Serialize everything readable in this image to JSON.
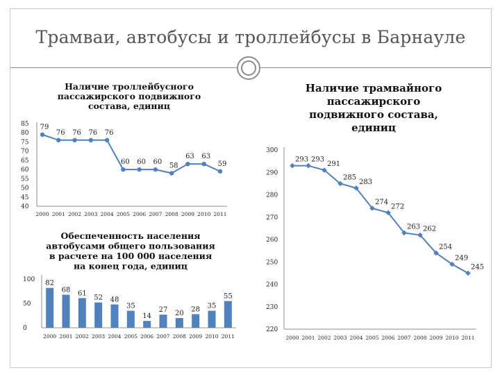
{
  "slide": {
    "title": "Трамваи, автобусы и троллейбусы в Барнауле"
  },
  "colors": {
    "series": "#4f81bd",
    "axis": "#8c8c8c",
    "text": "#222222",
    "title_text": "#555555"
  },
  "chart_data": [
    {
      "id": "trolleybus",
      "type": "line",
      "title_lines": [
        "Наличие троллейбусного",
        "пассажирского подвижного",
        "состава, единиц"
      ],
      "categories": [
        "2000",
        "2001",
        "2002",
        "2003",
        "2004",
        "2005",
        "2006",
        "2007",
        "2008",
        "2009",
        "2010",
        "2011"
      ],
      "values": [
        79,
        76,
        76,
        76,
        76,
        60,
        60,
        60,
        58,
        63,
        63,
        59
      ],
      "ylim": [
        40,
        85
      ],
      "yticks": [
        40,
        45,
        50,
        55,
        60,
        65,
        70,
        75,
        80,
        85
      ],
      "grid": false,
      "legend": "none",
      "markers": "circle"
    },
    {
      "id": "buses",
      "type": "bar",
      "title_lines": [
        "Обеспеченность населения",
        "автобусами общего пользования",
        "в расчете на 100 000 населения",
        "на конец года, единиц"
      ],
      "categories": [
        "2000",
        "2001",
        "2002",
        "2003",
        "2004",
        "2005",
        "2006",
        "2007",
        "2008",
        "2009",
        "2010",
        "2011"
      ],
      "values": [
        82,
        68,
        61,
        52,
        48,
        35,
        14,
        27,
        20,
        28,
        35,
        55
      ],
      "ylim": [
        0,
        100
      ],
      "yticks": [
        0,
        50,
        100
      ],
      "grid": false,
      "legend": "none"
    },
    {
      "id": "tram",
      "type": "line",
      "title_lines": [
        "Наличие трамвайного",
        "пассажирского",
        "подвижного состава,",
        "единиц"
      ],
      "categories": [
        "2000",
        "2001",
        "2002",
        "2003",
        "2004",
        "2005",
        "2006",
        "2007",
        "2008",
        "2009",
        "2010",
        "2011"
      ],
      "values": [
        293,
        293,
        291,
        285,
        283,
        274,
        272,
        263,
        262,
        254,
        249,
        245
      ],
      "ylim": [
        220,
        300
      ],
      "yticks": [
        220,
        230,
        240,
        250,
        260,
        270,
        280,
        290,
        300
      ],
      "grid": false,
      "legend": "none",
      "markers": "diamond"
    }
  ]
}
